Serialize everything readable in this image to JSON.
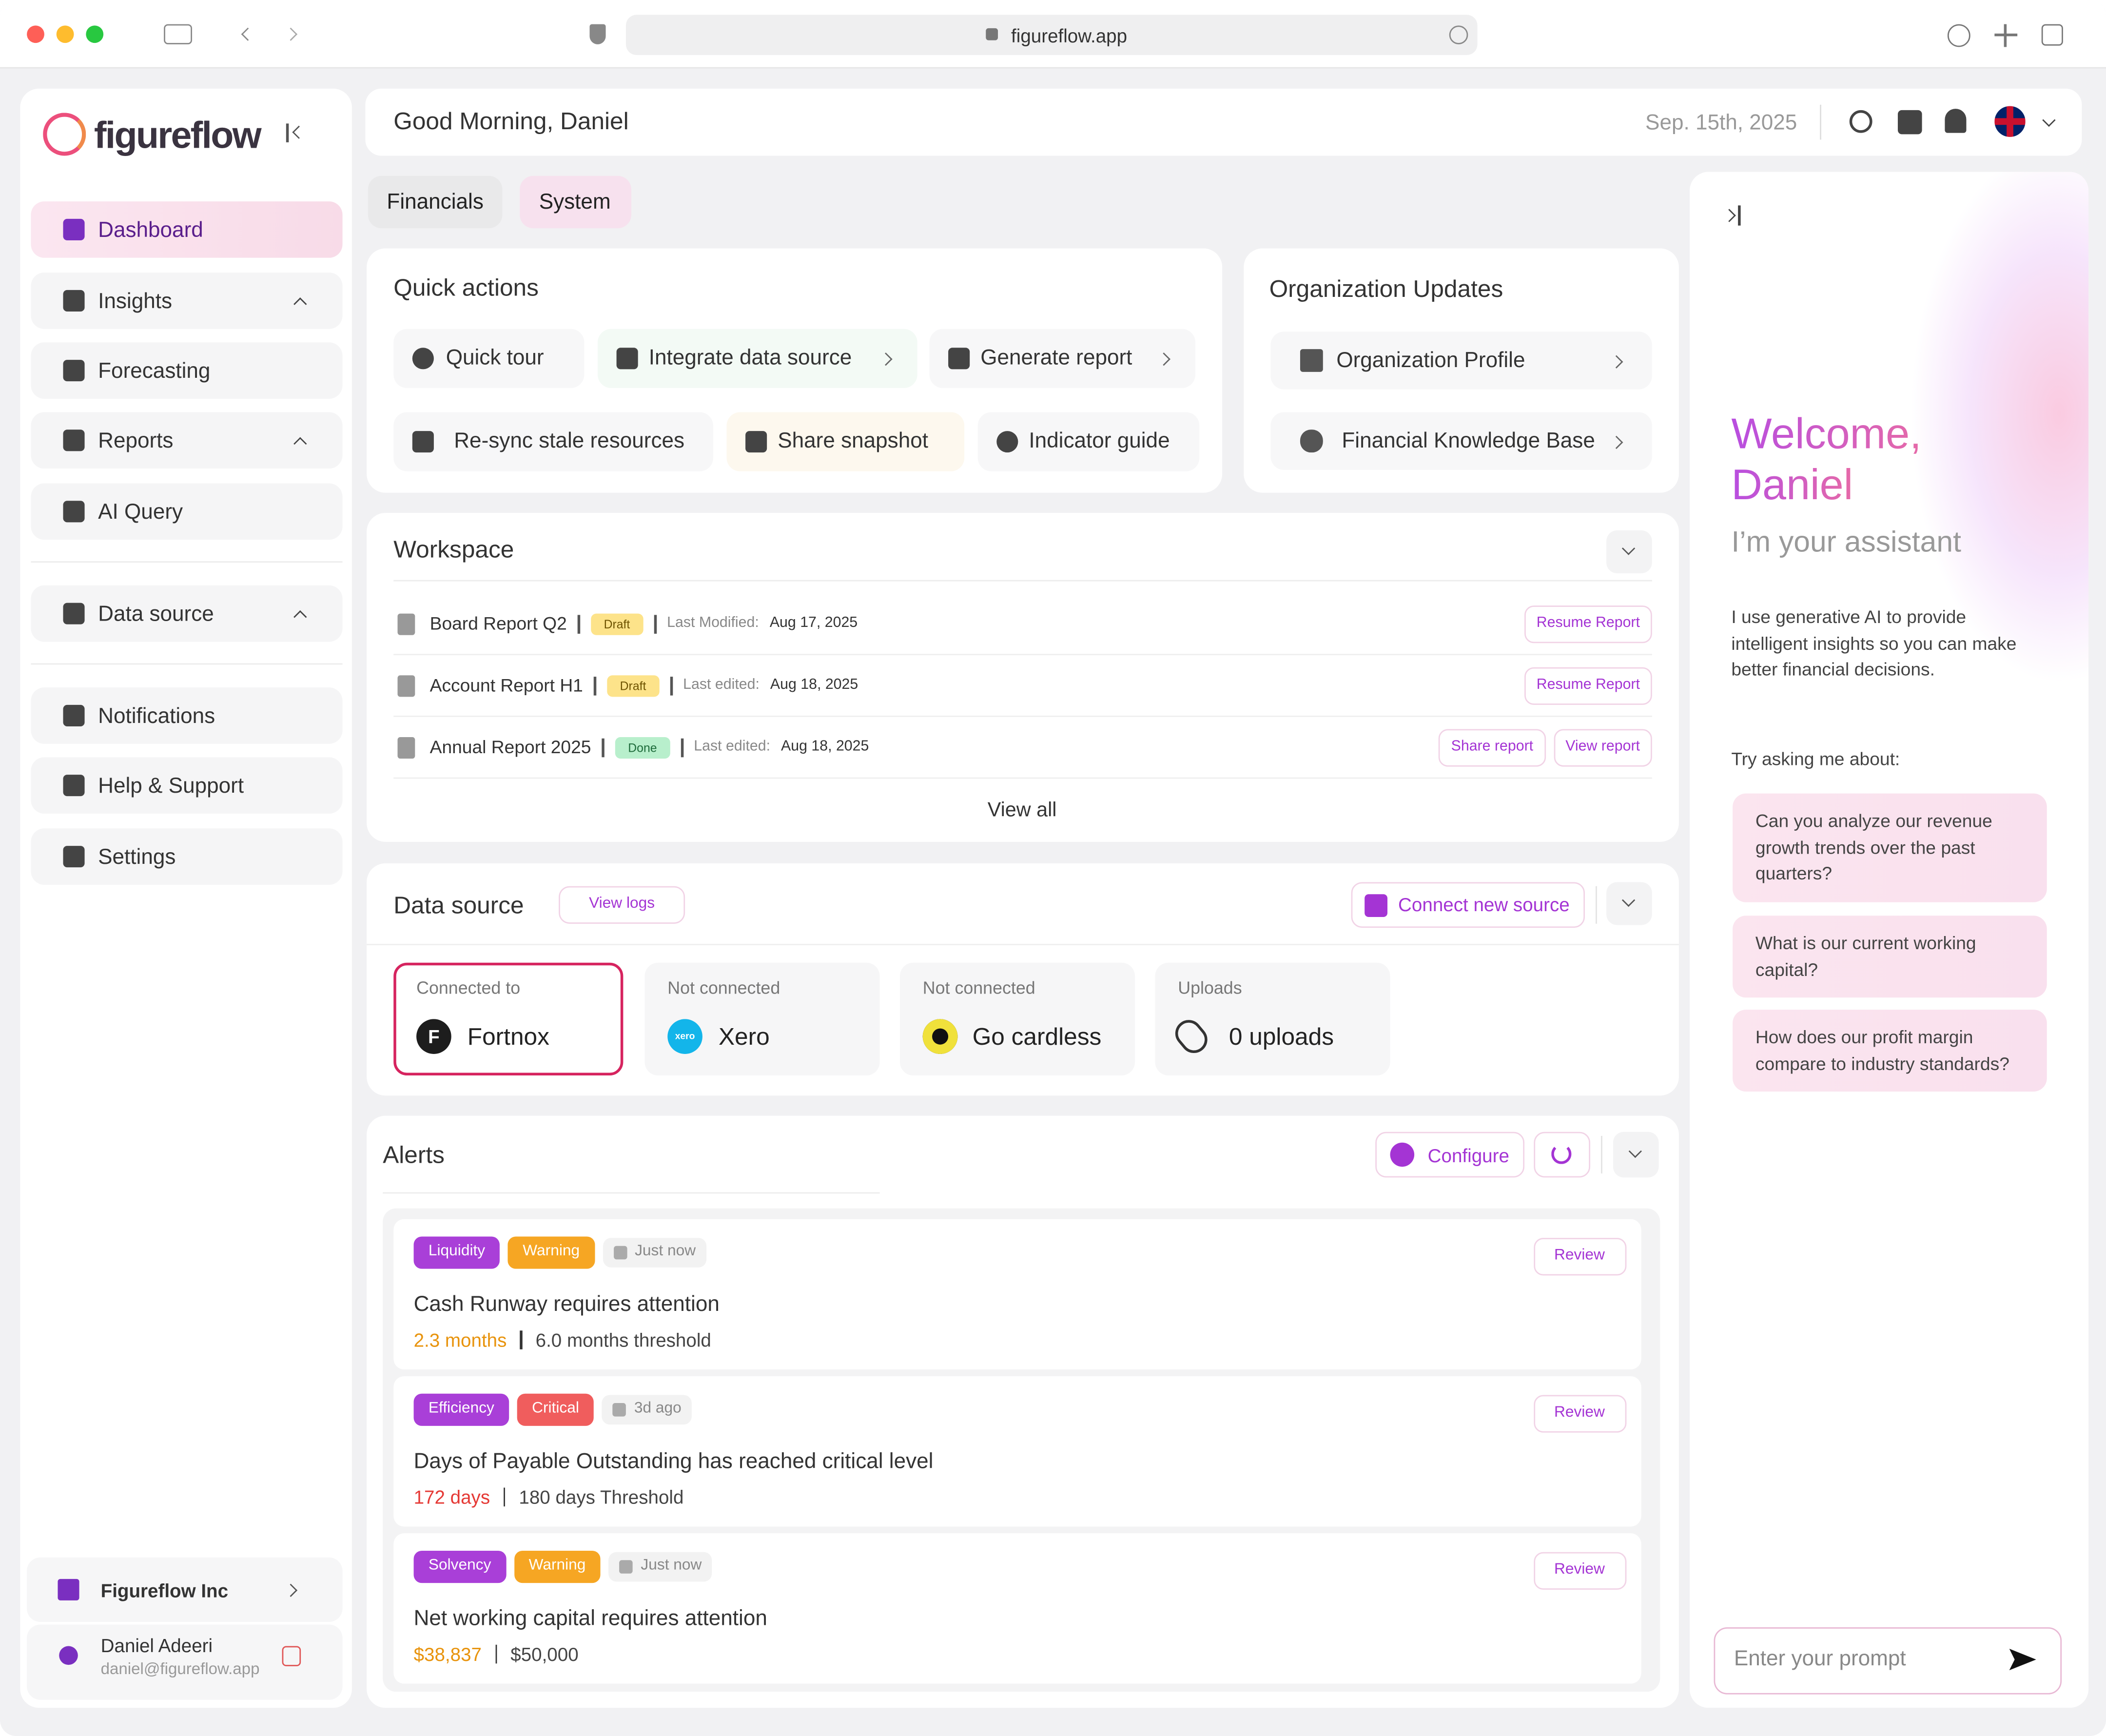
{
  "browser": {
    "url": "figureflow.app"
  },
  "sidebar": {
    "brand": "figureflow",
    "nav": [
      "Dashboard",
      "Insights",
      "Forecasting",
      "Reports",
      "AI Query",
      "Data source",
      "Notifications",
      "Help & Support",
      "Settings"
    ],
    "org": "Figureflow Inc",
    "user": {
      "name": "Daniel Adeeri",
      "email": "daniel@figureflow.app"
    }
  },
  "header": {
    "greeting": "Good Morning, Daniel",
    "date": "Sep. 15th, 2025"
  },
  "tabs": [
    "Financials",
    "System"
  ],
  "quick_actions": {
    "title": "Quick actions",
    "items": [
      "Quick tour",
      "Integrate data source",
      "Generate report",
      "Re-sync stale resources",
      "Share snapshot",
      "Indicator guide"
    ]
  },
  "org_updates": {
    "title": "Organization Updates",
    "items": [
      "Organization Profile",
      "Financial Knowledge Base"
    ]
  },
  "workspace": {
    "title": "Workspace",
    "rows": [
      {
        "name": "Board Report Q2",
        "status": "Draft",
        "date_label": "Last Modified:",
        "date": "Aug 17, 2025",
        "actions": [
          "Resume Report"
        ]
      },
      {
        "name": "Account Report H1",
        "status": "Draft",
        "date_label": "Last edited:",
        "date": "Aug 18, 2025",
        "actions": [
          "Resume Report"
        ]
      },
      {
        "name": "Annual Report 2025",
        "status": "Done",
        "date_label": "Last edited:",
        "date": "Aug 18, 2025",
        "actions": [
          "Share report",
          "View report"
        ]
      }
    ],
    "view_all": "View all"
  },
  "data_source": {
    "title": "Data source",
    "view_logs": "View logs",
    "connect": "Connect new source",
    "cards": [
      {
        "status": "Connected to",
        "icon": "F",
        "name": "Fortnox"
      },
      {
        "status": "Not connected",
        "icon": "xero",
        "name": "Xero"
      },
      {
        "status": "Not connected",
        "name": "Go cardless"
      },
      {
        "status": "Uploads",
        "name": "0 uploads"
      }
    ]
  },
  "alerts": {
    "title": "Alerts",
    "configure": "Configure",
    "items": [
      {
        "tags": [
          {
            "label": "Liquidity",
            "color": "#a93fd8"
          },
          {
            "label": "Warning",
            "color": "#f6a623"
          }
        ],
        "time": "Just now",
        "action": "Review",
        "title": "Cash Runway requires attention",
        "value": "2.3 months",
        "value_color": "#e8930c",
        "threshold": "6.0 months threshold"
      },
      {
        "tags": [
          {
            "label": "Efficiency",
            "color": "#a93fd8"
          },
          {
            "label": "Critical",
            "color": "#f05d5d"
          }
        ],
        "time": "3d ago",
        "action": "Review",
        "title": "Days of Payable Outstanding has reached critical level",
        "value": "172 days",
        "value_color": "#e53935",
        "threshold": "180 days Threshold"
      },
      {
        "tags": [
          {
            "label": "Solvency",
            "color": "#a93fd8"
          },
          {
            "label": "Warning",
            "color": "#f6a623"
          }
        ],
        "time": "Just now",
        "action": "Review",
        "title": "Net working capital requires attention",
        "value": "$38,837",
        "value_color": "#e8930c",
        "threshold": "$50,000"
      }
    ]
  },
  "assistant": {
    "welcome": "Welcome,",
    "name": "Daniel",
    "subtitle": "I’m your assistant",
    "intro": "I use generative AI to provide intelligent insights so you can make better financial decisions.",
    "try": "Try asking me about:",
    "suggestions": [
      "Can you analyze our revenue growth trends over the past quarters?",
      "What is our current working capital?",
      "How does our profit margin compare to industry standards?"
    ],
    "prompt_placeholder": "Enter your prompt"
  }
}
